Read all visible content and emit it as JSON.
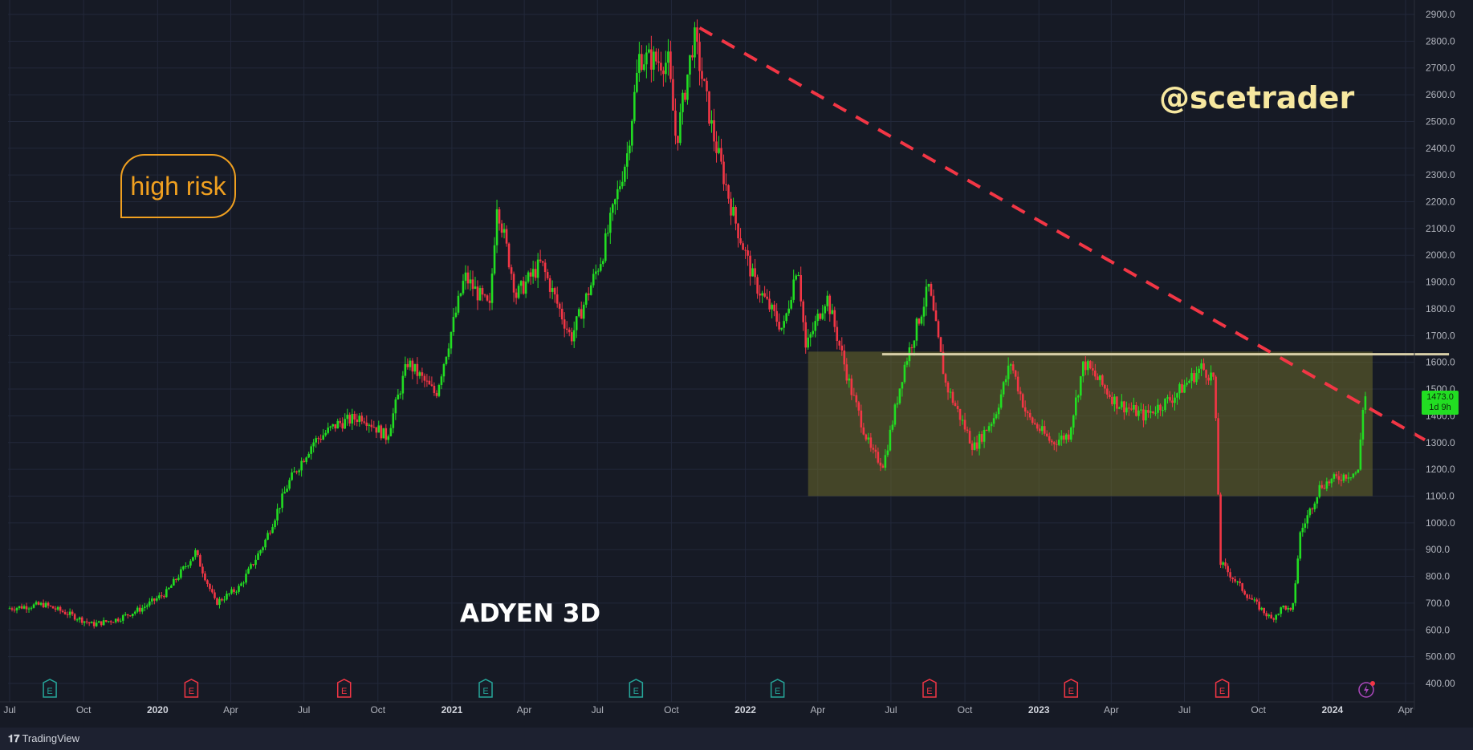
{
  "chart_data": {
    "type": "candlestick",
    "symbol_label": "ADYEN 3D",
    "watermark": "@scetrader",
    "note": "high risk",
    "current_price": "1473.0",
    "countdown": "1d 9h",
    "y_ticks": [
      "2900.0",
      "2800.0",
      "2700.0",
      "2600.0",
      "2500.0",
      "2400.0",
      "2300.0",
      "2200.0",
      "2100.0",
      "2000.0",
      "1900.0",
      "1800.0",
      "1700.0",
      "1600.0",
      "1500.0",
      "1400.0",
      "1300.0",
      "1200.0",
      "1100.0",
      "1000.0",
      "900.0",
      "800.0",
      "700.0",
      "600.0",
      "500.00",
      "400.00"
    ],
    "ylim": [
      400,
      2900
    ],
    "x_ticks": [
      "Jul",
      "Oct",
      "2020",
      "Apr",
      "Jul",
      "Oct",
      "2021",
      "Apr",
      "Jul",
      "Oct",
      "2022",
      "Apr",
      "Jul",
      "Oct",
      "2023",
      "Apr",
      "Jul",
      "Oct",
      "2024",
      "Apr"
    ],
    "x_bold_ticks": [
      "2020",
      "2021",
      "2022",
      "2023",
      "2024"
    ],
    "price_path": [
      [
        "2019-07-01",
        680
      ],
      [
        "2019-08-15",
        695
      ],
      [
        "2019-09-15",
        660
      ],
      [
        "2019-10-15",
        620
      ],
      [
        "2019-11-15",
        640
      ],
      [
        "2019-12-15",
        680
      ],
      [
        "2020-01-15",
        740
      ],
      [
        "2020-02-20",
        890
      ],
      [
        "2020-03-16",
        700
      ],
      [
        "2020-04-15",
        760
      ],
      [
        "2020-05-15",
        920
      ],
      [
        "2020-06-15",
        1150
      ],
      [
        "2020-07-15",
        1300
      ],
      [
        "2020-08-15",
        1370
      ],
      [
        "2020-09-15",
        1400
      ],
      [
        "2020-10-15",
        1320
      ],
      [
        "2020-11-10",
        1600
      ],
      [
        "2020-12-15",
        1480
      ],
      [
        "2021-01-20",
        1920
      ],
      [
        "2021-02-20",
        1800
      ],
      [
        "2021-03-01",
        2200
      ],
      [
        "2021-03-25",
        1850
      ],
      [
        "2021-04-25",
        1970
      ],
      [
        "2021-06-01",
        1690
      ],
      [
        "2021-07-10",
        2000
      ],
      [
        "2021-08-10",
        2380
      ],
      [
        "2021-08-25",
        2740
      ],
      [
        "2021-09-30",
        2720
      ],
      [
        "2021-10-10",
        2420
      ],
      [
        "2021-11-01",
        2820
      ],
      [
        "2021-11-25",
        2450
      ],
      [
        "2021-12-20",
        2150
      ],
      [
        "2022-01-15",
        1900
      ],
      [
        "2022-02-20",
        1720
      ],
      [
        "2022-03-10",
        1980
      ],
      [
        "2022-03-20",
        1650
      ],
      [
        "2022-04-15",
        1850
      ],
      [
        "2022-05-15",
        1500
      ],
      [
        "2022-06-10",
        1260
      ],
      [
        "2022-06-25",
        1220
      ],
      [
        "2022-07-20",
        1580
      ],
      [
        "2022-08-20",
        1880
      ],
      [
        "2022-09-10",
        1520
      ],
      [
        "2022-10-15",
        1280
      ],
      [
        "2022-11-10",
        1400
      ],
      [
        "2022-11-30",
        1600
      ],
      [
        "2022-12-20",
        1400
      ],
      [
        "2023-01-20",
        1300
      ],
      [
        "2023-02-10",
        1330
      ],
      [
        "2023-03-01",
        1600
      ],
      [
        "2023-04-10",
        1450
      ],
      [
        "2023-05-15",
        1400
      ],
      [
        "2023-06-20",
        1470
      ],
      [
        "2023-07-25",
        1580
      ],
      [
        "2023-08-10",
        1540
      ],
      [
        "2023-08-18",
        850
      ],
      [
        "2023-09-20",
        730
      ],
      [
        "2023-10-20",
        640
      ],
      [
        "2023-11-05",
        690
      ],
      [
        "2023-11-15",
        660
      ],
      [
        "2023-11-25",
        960
      ],
      [
        "2023-12-20",
        1140
      ],
      [
        "2024-01-20",
        1180
      ],
      [
        "2024-02-05",
        1190
      ],
      [
        "2024-02-12",
        1473
      ]
    ],
    "trendline": {
      "from": [
        "2021-11-05",
        2850
      ],
      "to": [
        "2024-04-25",
        1310
      ],
      "color": "#f23645",
      "style": "dashed"
    },
    "resistance_line": {
      "from": [
        "2022-06-20",
        1630
      ],
      "to": [
        "2024-05-25",
        1630
      ],
      "color": "#d8cfa8"
    },
    "range_box": {
      "from": [
        "2022-03-20",
        1640
      ],
      "to": [
        "2024-02-20",
        1100
      ],
      "color": "#6b6a2c"
    },
    "earnings_markers": [
      {
        "date": "2019-08-20",
        "kind": "green"
      },
      {
        "date": "2020-02-12",
        "kind": "red"
      },
      {
        "date": "2020-08-20",
        "kind": "red"
      },
      {
        "date": "2021-02-12",
        "kind": "green"
      },
      {
        "date": "2021-08-18",
        "kind": "green"
      },
      {
        "date": "2022-02-10",
        "kind": "green"
      },
      {
        "date": "2022-08-18",
        "kind": "red"
      },
      {
        "date": "2023-02-10",
        "kind": "red"
      },
      {
        "date": "2023-08-17",
        "kind": "red"
      }
    ],
    "colors": {
      "background": "#161a25",
      "up": "#22dd22",
      "down": "#f23645",
      "grid": "#22283a",
      "text": "#b2b5be"
    },
    "brand": "TradingView"
  }
}
